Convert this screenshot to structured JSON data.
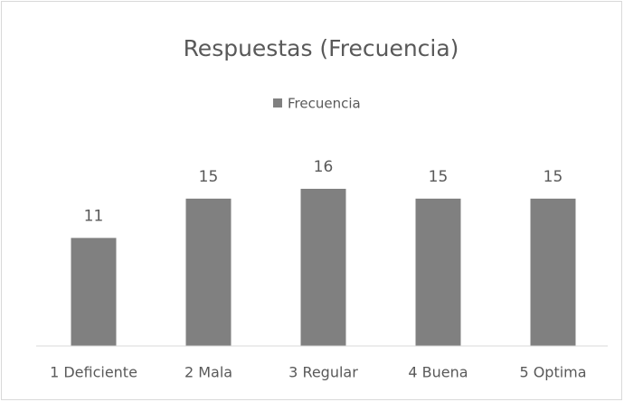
{
  "chart_data": {
    "type": "bar",
    "title": "Respuestas (Frecuencia)",
    "categories": [
      "1 Deficiente",
      "2 Mala",
      "3 Regular",
      "4 Buena",
      "5 Optima"
    ],
    "series": [
      {
        "name": "Frecuencia",
        "color": "#808080",
        "values": [
          11,
          15,
          16,
          15,
          15
        ]
      }
    ],
    "ylim": [
      0,
      16
    ],
    "legend": "top"
  }
}
